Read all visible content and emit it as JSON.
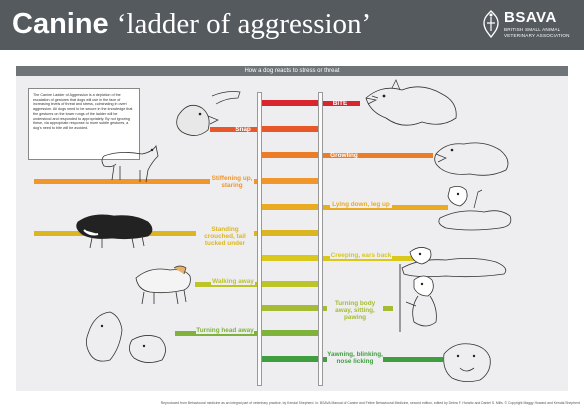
{
  "header": {
    "title_bold": "Canine",
    "title_rest": "‘ladder of aggression’",
    "logo_text": "BSAVA",
    "logo_subtitle": "BRITISH SMALL ANIMAL VETERINARY ASSOCIATION"
  },
  "panel": {
    "heading": "How a dog reacts to stress or threat"
  },
  "intro_text": "The Canine Ladder of Aggression is a depiction of the escalation of gestures that dogs will use in the face of increasing levels of threat and stress, culminating in overt aggression. All dogs need to be secure in the knowledge that the gestures on the lower rungs of the ladder will be understood and responded to appropriately. By not ignoring these, via appropriate response to more subtle gestures, a dog's need to bite will be avoided.",
  "rungs": [
    {
      "label": "BITE",
      "color": "#d9262e"
    },
    {
      "label": "Snap",
      "color": "#e8572a"
    },
    {
      "label": "Growling",
      "color": "#ec7c26"
    },
    {
      "label": "Stiffening up, staring",
      "color": "#f0962a"
    },
    {
      "label": "Lying down, leg up",
      "color": "#e9ab21"
    },
    {
      "label": "Standing crouched, tail tucked under",
      "color": "#dcb622"
    },
    {
      "label": "Creeping, ears back",
      "color": "#d9c71c"
    },
    {
      "label": "Walking away",
      "color": "#bcc42a"
    },
    {
      "label": "Turning body away, sitting, pawing",
      "color": "#a5bc32"
    },
    {
      "label": "Turning head away",
      "color": "#7fb23a"
    },
    {
      "label": "Yawning, blinking, nose licking",
      "color": "#3f9f3f"
    }
  ],
  "footer_text": "Reproduced from Behavioural medicine as an integral part of veterinary practice, by Kendal Shepherd. In: BSAVA Manual of Canine and Feline Behavioural Medicine, second edition, edited by Debra F. Horwitz and Daniel S. Mills. © Copyright Maggy Howard and Kendal Shepherd",
  "icons": {
    "logo": "bsava-crest-icon",
    "dogs": [
      "biting-dog-icon",
      "snapping-dog-icon",
      "growling-dog-icon",
      "staring-dog-icon",
      "lying-dog-icon",
      "crouching-dog-icon",
      "creeping-dog-icon",
      "walking-away-dog-icon",
      "sitting-pawing-dog-icon",
      "head-turned-dog-icon",
      "yawning-dog-icon"
    ]
  }
}
